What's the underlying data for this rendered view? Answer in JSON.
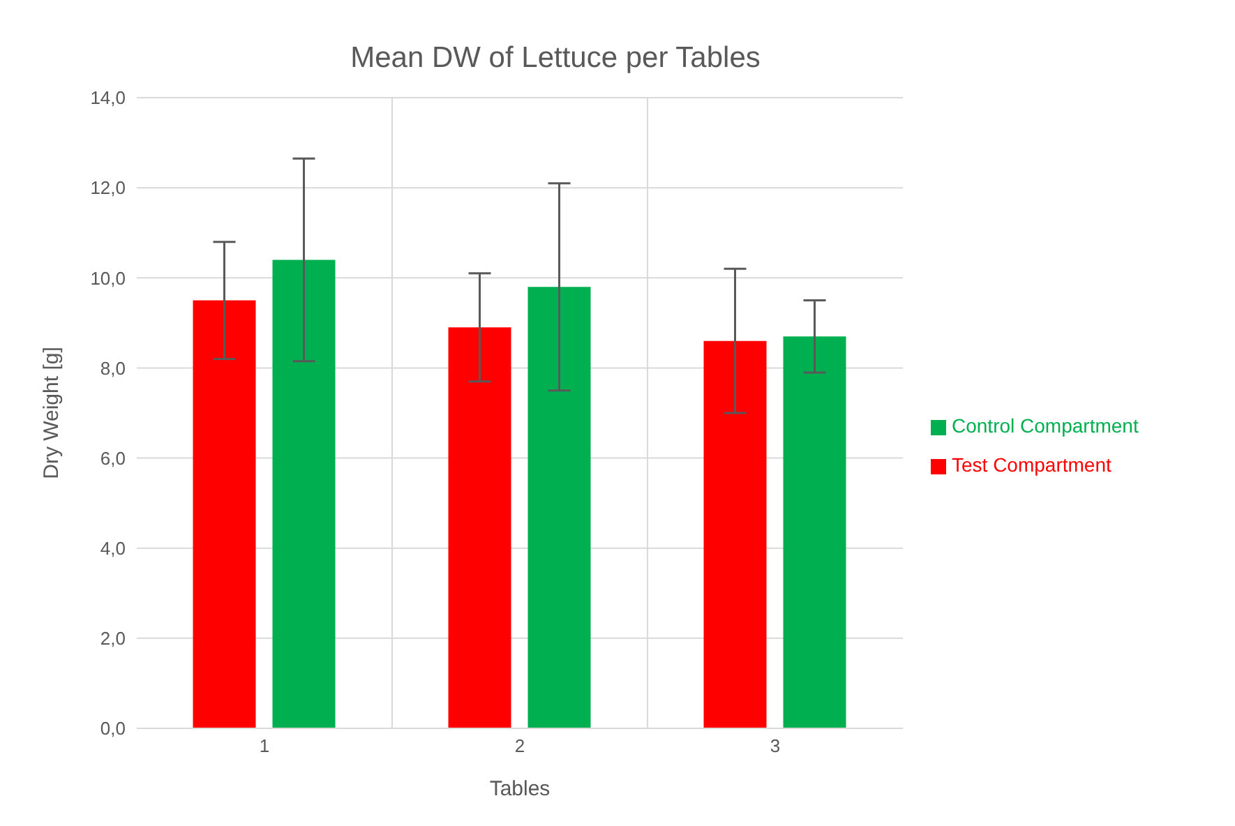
{
  "chart_data": {
    "type": "bar",
    "title": "Mean DW of Lettuce per Tables",
    "xlabel": "Tables",
    "ylabel": "Dry Weight [g]",
    "categories": [
      "1",
      "2",
      "3"
    ],
    "series": [
      {
        "name": "Test Compartment",
        "color": "#ff0000",
        "values": [
          9.5,
          8.9,
          8.6
        ],
        "errors": [
          1.3,
          1.2,
          1.6
        ]
      },
      {
        "name": "Control Compartment",
        "color": "#00b050",
        "values": [
          10.4,
          9.8,
          8.7
        ],
        "errors": [
          2.25,
          2.3,
          0.8
        ]
      }
    ],
    "ylim": [
      0,
      14
    ],
    "yticks": [
      {
        "value": 0,
        "label": "0,0"
      },
      {
        "value": 2,
        "label": "2,0"
      },
      {
        "value": 4,
        "label": "4,0"
      },
      {
        "value": 6,
        "label": "6,0"
      },
      {
        "value": 8,
        "label": "8,0"
      },
      {
        "value": 10,
        "label": "10,0"
      },
      {
        "value": 12,
        "label": "12,0"
      },
      {
        "value": 14,
        "label": "14,0"
      }
    ],
    "grid": true,
    "legend": "right"
  }
}
